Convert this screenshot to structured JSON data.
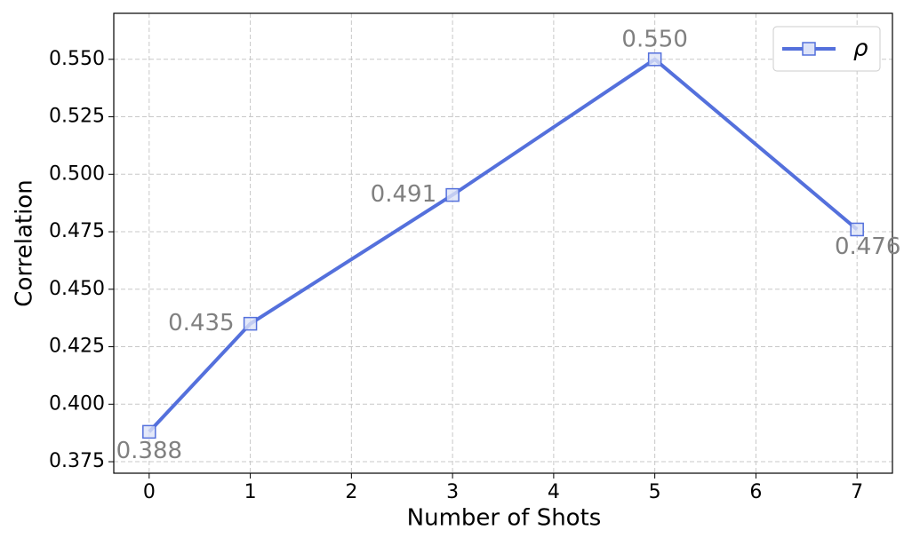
{
  "chart_data": {
    "type": "line",
    "x_label": "Number of Shots",
    "y_label": "Correlation",
    "x": [
      0,
      1,
      3,
      5,
      7
    ],
    "series": [
      {
        "name": "ρ",
        "color": "#5470dc",
        "values": [
          0.388,
          0.435,
          0.491,
          0.55,
          0.476
        ],
        "value_labels": [
          "0.388",
          "0.435",
          "0.491",
          "0.550",
          "0.476"
        ]
      }
    ],
    "xlim": [
      -0.35,
      7.35
    ],
    "ylim": [
      0.37,
      0.57
    ],
    "xticks": [
      0,
      1,
      2,
      3,
      4,
      5,
      6,
      7
    ],
    "yticks": [
      0.375,
      {
        "value": 0.4,
        "label": "0.400"
      },
      0.425,
      {
        "value": 0.45,
        "label": "0.450"
      },
      0.475,
      {
        "value": 0.5,
        "label": "0.500"
      },
      0.525,
      {
        "value": 0.55,
        "label": "0.550"
      }
    ],
    "grid": true,
    "legend": "upper right"
  }
}
